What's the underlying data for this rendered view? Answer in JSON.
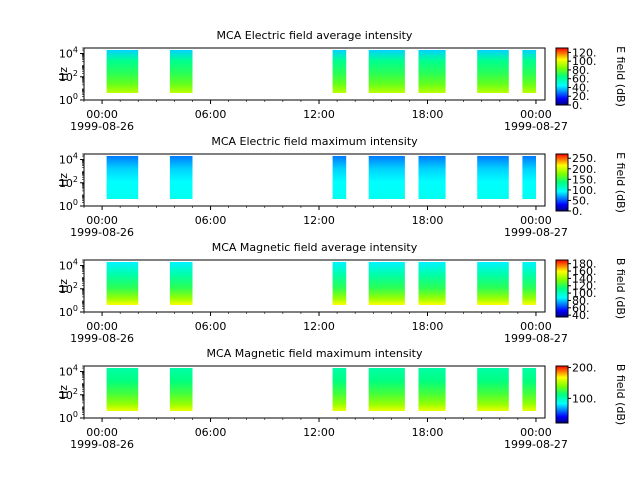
{
  "chart_data": [
    {
      "type": "heatmap",
      "title": "MCA  Electric field average intensity",
      "ylabel": "Hz",
      "colorbar_label": "E field (dB)",
      "colorbar_ticks": [
        "0.",
        "20.",
        "40.",
        "60.",
        "80.",
        "100.",
        "120."
      ],
      "colorbar_range": [
        0,
        130
      ],
      "y_scale": "log",
      "y_ticks": [
        {
          "base": "10",
          "exp": "0"
        },
        {
          "base": "10",
          "exp": "2"
        },
        {
          "base": "10",
          "exp": "4"
        }
      ],
      "ylim": [
        1,
        30000
      ],
      "x_ticks": [
        "00:00",
        "06:00",
        "12:00",
        "18:00",
        "00:00"
      ],
      "x_dates": [
        "1999-08-26",
        "1999-08-27"
      ],
      "xlim": [
        "1999-08-25 23:00",
        "1999-08-27 00:30"
      ],
      "data_intervals": [
        [
          "00:15",
          "02:00"
        ],
        [
          "03:45",
          "05:00"
        ],
        [
          "12:45",
          "13:30"
        ],
        [
          "14:45",
          "16:45"
        ],
        [
          "17:30",
          "19:00"
        ],
        [
          "20:45",
          "22:30"
        ],
        [
          "23:15",
          "00:00"
        ]
      ],
      "style": "avg_e"
    },
    {
      "type": "heatmap",
      "title": "MCA  Electric field maximum intensity",
      "ylabel": "Hz",
      "colorbar_label": "E field (dB)",
      "colorbar_ticks": [
        "0.",
        "50.",
        "100.",
        "150.",
        "200.",
        "250."
      ],
      "colorbar_range": [
        0,
        270
      ],
      "y_scale": "log",
      "y_ticks": [
        {
          "base": "10",
          "exp": "0"
        },
        {
          "base": "10",
          "exp": "2"
        },
        {
          "base": "10",
          "exp": "4"
        }
      ],
      "ylim": [
        1,
        30000
      ],
      "x_ticks": [
        "00:00",
        "06:00",
        "12:00",
        "18:00",
        "00:00"
      ],
      "x_dates": [
        "1999-08-26",
        "1999-08-27"
      ],
      "xlim": [
        "1999-08-25 23:00",
        "1999-08-27 00:30"
      ],
      "data_intervals": [
        [
          "00:15",
          "02:00"
        ],
        [
          "03:45",
          "05:00"
        ],
        [
          "12:45",
          "13:30"
        ],
        [
          "14:45",
          "16:45"
        ],
        [
          "17:30",
          "19:00"
        ],
        [
          "20:45",
          "22:30"
        ],
        [
          "23:15",
          "00:00"
        ]
      ],
      "style": "max_e"
    },
    {
      "type": "heatmap",
      "title": "MCA  Magnetic field average intensity",
      "ylabel": "Hz",
      "colorbar_label": "B field (dB)",
      "colorbar_ticks": [
        "40.",
        "60.",
        "80.",
        "100.",
        "120.",
        "140.",
        "160.",
        "180."
      ],
      "colorbar_range": [
        35,
        190
      ],
      "y_scale": "log",
      "y_ticks": [
        {
          "base": "10",
          "exp": "0"
        },
        {
          "base": "10",
          "exp": "2"
        },
        {
          "base": "10",
          "exp": "4"
        }
      ],
      "ylim": [
        1,
        30000
      ],
      "x_ticks": [
        "00:00",
        "06:00",
        "12:00",
        "18:00",
        "00:00"
      ],
      "x_dates": [
        "1999-08-26",
        "1999-08-27"
      ],
      "xlim": [
        "1999-08-25 23:00",
        "1999-08-27 00:30"
      ],
      "data_intervals": [
        [
          "00:15",
          "02:00"
        ],
        [
          "03:45",
          "05:00"
        ],
        [
          "12:45",
          "13:30"
        ],
        [
          "14:45",
          "16:45"
        ],
        [
          "17:30",
          "19:00"
        ],
        [
          "20:45",
          "22:30"
        ],
        [
          "23:15",
          "00:00"
        ]
      ],
      "style": "avg_b"
    },
    {
      "type": "heatmap",
      "title": "MCA  Magnetic field maximum intensity",
      "ylabel": "Hz",
      "colorbar_label": "B field (dB)",
      "colorbar_ticks": [
        "100.",
        "200."
      ],
      "colorbar_range": [
        20,
        205
      ],
      "y_scale": "log",
      "y_ticks": [
        {
          "base": "10",
          "exp": "0"
        },
        {
          "base": "10",
          "exp": "2"
        },
        {
          "base": "10",
          "exp": "4"
        }
      ],
      "ylim": [
        1,
        30000
      ],
      "x_ticks": [
        "00:00",
        "06:00",
        "12:00",
        "18:00",
        "00:00"
      ],
      "x_dates": [
        "1999-08-26",
        "1999-08-27"
      ],
      "xlim": [
        "1999-08-25 23:00",
        "1999-08-27 00:30"
      ],
      "data_intervals": [
        [
          "00:15",
          "02:00"
        ],
        [
          "03:45",
          "05:00"
        ],
        [
          "12:45",
          "13:30"
        ],
        [
          "14:45",
          "16:45"
        ],
        [
          "17:30",
          "19:00"
        ],
        [
          "20:45",
          "22:30"
        ],
        [
          "23:15",
          "00:00"
        ]
      ],
      "style": "max_b"
    }
  ]
}
